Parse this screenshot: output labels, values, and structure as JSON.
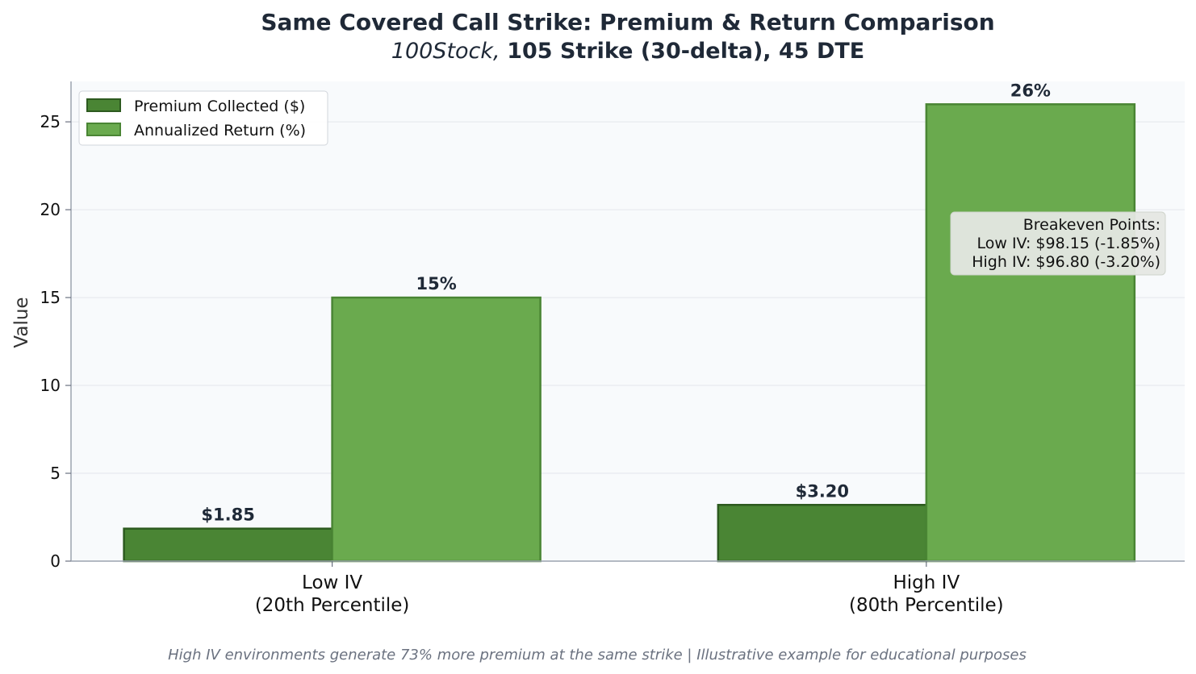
{
  "chart_data": {
    "type": "bar",
    "title": "Same Covered Call Strike: Premium & Return Comparison",
    "subtitle_italic": "100Stock,",
    "subtitle_bold": "105 Strike (30-delta), 45 DTE",
    "ylabel": "Value",
    "xlabel": "",
    "ylim": [
      0,
      27.3
    ],
    "yticks": [
      0,
      5,
      10,
      15,
      20,
      25
    ],
    "grid": true,
    "legend_position": "top-left",
    "categories": [
      [
        "Low IV",
        "(20th Percentile)"
      ],
      [
        "High IV",
        "(80th Percentile)"
      ]
    ],
    "series": [
      {
        "name": "Premium Collected ($)",
        "values": [
          1.85,
          3.2
        ],
        "labels": [
          "$1.85",
          "$3.20"
        ],
        "color": "#4a8534",
        "edge": "#2d5a1f"
      },
      {
        "name": "Annualized Return (%)",
        "values": [
          15,
          26
        ],
        "labels": [
          "15%",
          "26%"
        ],
        "color": "#6aaa4e",
        "edge": "#4a8534"
      }
    ],
    "annotation": {
      "lines": [
        "Breakeven Points:",
        "Low IV: $98.15 (-1.85%)",
        "High IV: $96.80 (-3.20%)"
      ],
      "position": "right"
    },
    "footer": "High IV environments generate 73% more premium at the same strike | Illustrative example for educational purposes",
    "plot_background": "#f8fafc",
    "text_color": "#1f2937"
  }
}
